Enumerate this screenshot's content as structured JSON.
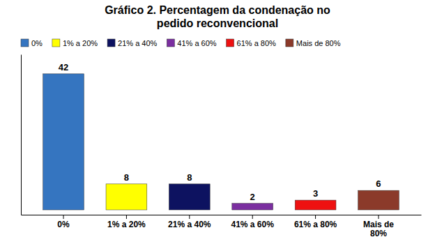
{
  "chart_data": {
    "type": "bar",
    "title": "Gráfico 2. Percentagem da condenação no\npedido reconvencional",
    "categories": [
      "0%",
      "1% a 20%",
      "21% a 40%",
      "41% a 60%",
      "61% a 80%",
      "Mais de\n80%"
    ],
    "values": [
      42,
      8,
      8,
      2,
      3,
      6
    ],
    "colors": [
      "#3575C0",
      "#FFFF00",
      "#0D1260",
      "#7B2FA0",
      "#EE1111",
      "#8B3A2A"
    ],
    "legend_labels": [
      "0%",
      "1% a 20%",
      "21% a 40%",
      "41% a 60%",
      "61% a 80%",
      "Mais de 80%"
    ],
    "legend": "upper left",
    "ylim": [
      -1.5,
      48
    ],
    "yticks": [],
    "tick_labels": "x",
    "data_labels": true,
    "grid": false
  }
}
